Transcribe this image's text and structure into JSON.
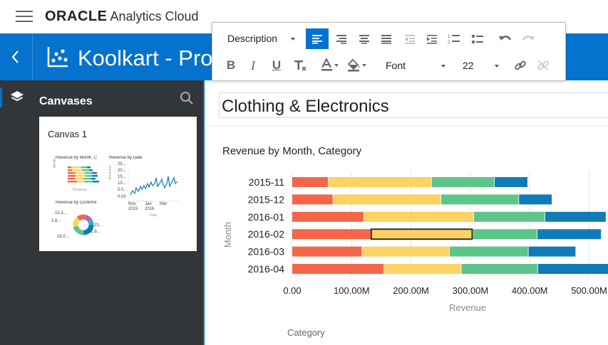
{
  "header": {
    "brand_oracle": "ORACLE",
    "brand_product": "Analytics Cloud"
  },
  "project": {
    "title": "Koolkart - Pro"
  },
  "left_panel": {
    "section_label": "Canvases",
    "canvas_card": {
      "title": "Canvas 1",
      "thumb_titles": [
        "Revenue by Month, C",
        "Revenue by Date",
        "Revenue by Custome"
      ],
      "thumb_month_label": "Month",
      "thumb_revenue_label": "Revenue",
      "thumb_line_ticks": [
        "25...",
        "20...",
        "15...",
        "10...",
        "5.0...",
        "0.00"
      ],
      "thumb_line_xticks": [
        "Nov\n2015",
        "Jan\n2016",
        "Mar"
      ],
      "thumb_date_label": "Date",
      "thumb_pie_labels": [
        "15.3...",
        "2.8...",
        "12.8...",
        "23...",
        "18.0..."
      ]
    }
  },
  "toolbar": {
    "style_select": "Description",
    "font_select": "Font",
    "size_select": "22",
    "buttons": [
      "align-left",
      "align-center",
      "align-right",
      "justify",
      "outdent",
      "indent",
      "numbered-list",
      "bulleted-list",
      "undo",
      "redo",
      "bold",
      "italic",
      "underline",
      "clear-format",
      "font-color",
      "fill-color",
      "link",
      "unlink"
    ]
  },
  "canvas": {
    "title": "Clothing & Electronics",
    "viz_title": "Revenue by Month, Category",
    "legend_title": "Category"
  },
  "chart_data": {
    "type": "bar",
    "orientation": "horizontal",
    "stacked": true,
    "title": "Revenue by Month, Category",
    "xlabel": "Revenue",
    "ylabel": "Month",
    "categories": [
      "2015-11",
      "2015-12",
      "2016-01",
      "2016-02",
      "2016-03",
      "2016-04"
    ],
    "xlim": [
      0,
      545000000
    ],
    "xticks": [
      "0.00",
      "100.00M",
      "200.00M",
      "300.00M",
      "400.00M",
      "500.00M"
    ],
    "xtick_values": [
      0,
      100000000,
      200000000,
      300000000,
      400000000,
      500000000
    ],
    "grid": true,
    "legend_title": "Category",
    "colors": [
      "#f4664a",
      "#fdd264",
      "#5ec58a",
      "#0f7bb7"
    ],
    "series": [
      {
        "values": [
          61000000,
          69000000,
          121000000,
          133000000,
          118000000,
          155000000
        ]
      },
      {
        "values": [
          174000000,
          182000000,
          185000000,
          171000000,
          147000000,
          130000000
        ]
      },
      {
        "values": [
          106000000,
          131000000,
          120000000,
          109000000,
          133000000,
          129000000
        ]
      },
      {
        "values": [
          56000000,
          56000000,
          103000000,
          108000000,
          80000000,
          130000000
        ]
      }
    ],
    "highlighted": {
      "category": "2016-02",
      "series_index": 1
    }
  }
}
